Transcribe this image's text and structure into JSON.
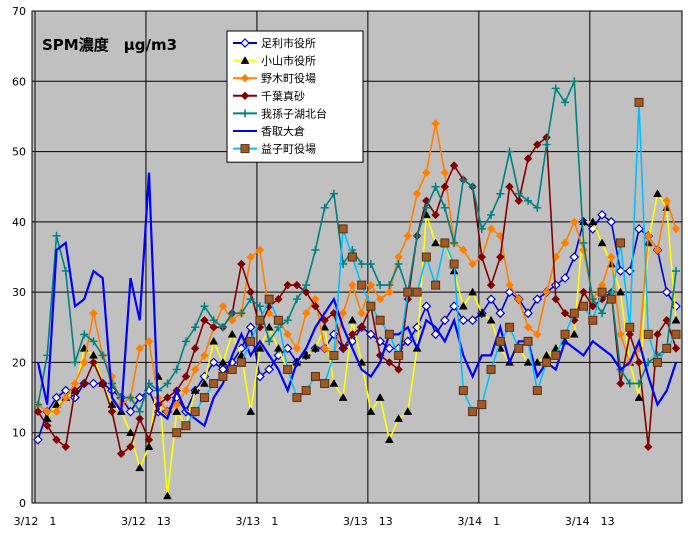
{
  "chart_data": {
    "type": "line",
    "title": "SPM濃度　μg/m3",
    "xlabel": "",
    "ylabel": "",
    "ylim": [
      0,
      70
    ],
    "yticks": [
      0,
      10,
      20,
      30,
      40,
      50,
      60,
      70
    ],
    "x_tick_labels": [
      "3/12　1",
      "3/12　13",
      "3/13　1",
      "3/13　13",
      "3/14　1",
      "3/14　13"
    ],
    "x_tick_index": [
      0,
      12,
      24,
      36,
      48,
      60
    ],
    "n_points": 70,
    "grid": true,
    "legend_position": "top-left",
    "plot_background": "#c0c0c0",
    "series": [
      {
        "name": "足利市役所",
        "color": "#0000cc",
        "marker": "diamond-open",
        "values": [
          9,
          13,
          15,
          16,
          15,
          17,
          17,
          17,
          16,
          15,
          13,
          15,
          16,
          13,
          13,
          15,
          13,
          16,
          18,
          20,
          19,
          20,
          22,
          25,
          18,
          19,
          21,
          22,
          20,
          21,
          22,
          22,
          24,
          22,
          23,
          25,
          24,
          23,
          22,
          22,
          23,
          25,
          28,
          24,
          26,
          28,
          26,
          26,
          27,
          29,
          27,
          30,
          29,
          27,
          29,
          30,
          31,
          32,
          35,
          40,
          39,
          41,
          40,
          33,
          33,
          39,
          38,
          36,
          30,
          28
        ]
      },
      {
        "name": "小山市役所",
        "color": "#ffff00",
        "marker": "triangle",
        "values": [
          null,
          12,
          14,
          15,
          16,
          22,
          21,
          17,
          14,
          13,
          10,
          5,
          8,
          18,
          1,
          13,
          11,
          16,
          17,
          23,
          20,
          24,
          21,
          13,
          22,
          25,
          22,
          19,
          20,
          21,
          22,
          25,
          17,
          15,
          26,
          20,
          13,
          15,
          9,
          12,
          13,
          22,
          41,
          37,
          37,
          33,
          28,
          30,
          27,
          26,
          22,
          20,
          22,
          20,
          20,
          21,
          22,
          23,
          24,
          40,
          40,
          37,
          34,
          30,
          20,
          15,
          37,
          44,
          42,
          26
        ]
      },
      {
        "name": "野木町役場",
        "color": "#ff8000",
        "marker": "diamond",
        "values": [
          14,
          13,
          13,
          15,
          17,
          20,
          27,
          21,
          18,
          14,
          15,
          22,
          23,
          15,
          13,
          14,
          16,
          19,
          21,
          25,
          28,
          26,
          27,
          35,
          36,
          27,
          26,
          24,
          22,
          27,
          29,
          22,
          21,
          27,
          31,
          27,
          31,
          29,
          30,
          35,
          38,
          44,
          47,
          54,
          47,
          37,
          36,
          34,
          35,
          39,
          38,
          31,
          29,
          25,
          24,
          30,
          35,
          37,
          40,
          36,
          29,
          31,
          35,
          24,
          20,
          22,
          38,
          36,
          43,
          39
        ]
      },
      {
        "name": "千葉真砂",
        "color": "#800000",
        "marker": "diamond",
        "values": [
          13,
          11,
          9,
          8,
          16,
          17,
          20,
          17,
          13,
          7,
          8,
          12,
          9,
          14,
          15,
          16,
          18,
          22,
          26,
          25,
          25,
          27,
          34,
          30,
          25,
          28,
          29,
          31,
          31,
          30,
          28,
          26,
          27,
          22,
          24,
          25,
          28,
          21,
          20,
          19,
          29,
          38,
          43,
          41,
          45,
          48,
          46,
          45,
          35,
          31,
          35,
          45,
          43,
          49,
          51,
          52,
          29,
          27,
          26,
          30,
          28,
          29,
          30,
          17,
          24,
          20,
          8,
          24,
          26,
          22
        ]
      },
      {
        "name": "我孫子湖北台",
        "color": "#008080",
        "marker": "plus",
        "values": [
          14,
          21,
          38,
          33,
          20,
          24,
          23,
          21,
          17,
          15,
          15,
          13,
          17,
          16,
          17,
          19,
          23,
          25,
          28,
          26,
          25,
          27,
          27,
          29,
          28,
          23,
          25,
          26,
          29,
          31,
          36,
          42,
          44,
          34,
          36,
          34,
          34,
          31,
          31,
          34,
          30,
          38,
          42,
          45,
          42,
          37,
          46,
          45,
          39,
          41,
          44,
          50,
          44,
          43,
          42,
          51,
          59,
          57,
          60,
          37,
          29,
          27,
          30,
          19,
          17,
          17,
          20,
          21,
          22,
          33
        ]
      },
      {
        "name": "香取大倉",
        "color": "#0000ff",
        "marker": "none",
        "values": [
          20,
          14,
          36,
          37,
          28,
          29,
          33,
          32,
          15,
          13,
          32,
          26,
          47,
          13,
          12,
          16,
          13,
          12,
          11,
          15,
          17,
          21,
          24,
          21,
          23,
          21,
          19,
          16,
          20,
          22,
          25,
          27,
          29,
          25,
          22,
          19,
          18,
          20,
          24,
          24,
          25,
          22,
          26,
          25,
          23,
          26,
          21,
          18,
          21,
          21,
          25,
          20,
          23,
          23,
          18,
          20,
          19,
          23,
          22,
          21,
          23,
          22,
          21,
          19,
          20,
          23,
          18,
          14,
          16,
          20
        ]
      },
      {
        "name": "益子町役場",
        "color": "#00c0ff",
        "marker": "square-x",
        "values": [
          null,
          null,
          null,
          null,
          null,
          null,
          null,
          null,
          null,
          null,
          null,
          null,
          null,
          null,
          null,
          10,
          11,
          13,
          15,
          17,
          18,
          19,
          20,
          23,
          26,
          29,
          26,
          19,
          15,
          16,
          18,
          17,
          21,
          39,
          35,
          31,
          28,
          26,
          24,
          21,
          30,
          30,
          35,
          31,
          37,
          34,
          16,
          13,
          14,
          19,
          23,
          25,
          22,
          23,
          16,
          20,
          21,
          24,
          27,
          28,
          26,
          30,
          29,
          37,
          25,
          57,
          24,
          20,
          22,
          24
        ]
      }
    ]
  }
}
